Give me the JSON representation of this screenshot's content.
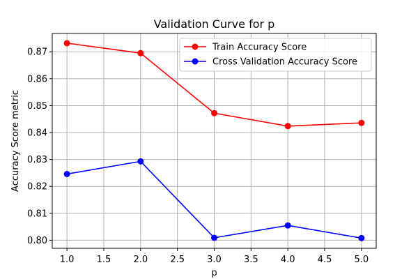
{
  "chart_data": {
    "type": "line",
    "title": "Validation Curve for p",
    "xlabel": "p",
    "ylabel": "Accuracy Score metric",
    "x": [
      1,
      2,
      3,
      4,
      5
    ],
    "xlim": [
      0.8,
      5.2
    ],
    "ylim": [
      0.797,
      0.8768
    ],
    "xticks": [
      1.0,
      1.5,
      2.0,
      2.5,
      3.0,
      3.5,
      4.0,
      4.5,
      5.0
    ],
    "xtick_labels": [
      "1.0",
      "1.5",
      "2.0",
      "2.5",
      "3.0",
      "3.5",
      "4.0",
      "4.5",
      "5.0"
    ],
    "yticks": [
      0.8,
      0.81,
      0.82,
      0.83,
      0.84,
      0.85,
      0.86,
      0.87
    ],
    "ytick_labels": [
      "0.80",
      "0.81",
      "0.82",
      "0.83",
      "0.84",
      "0.85",
      "0.86",
      "0.87"
    ],
    "grid": true,
    "legend_position": "top-right",
    "series": [
      {
        "name": "Train Accuracy Score",
        "color": "#ff0000",
        "marker": "circle",
        "values": [
          0.8732,
          0.8695,
          0.8472,
          0.8424,
          0.8436
        ]
      },
      {
        "name": "Cross Validation Accuracy Score",
        "color": "#0000ff",
        "marker": "circle",
        "values": [
          0.8246,
          0.8293,
          0.8009,
          0.8055,
          0.8008
        ]
      }
    ]
  }
}
